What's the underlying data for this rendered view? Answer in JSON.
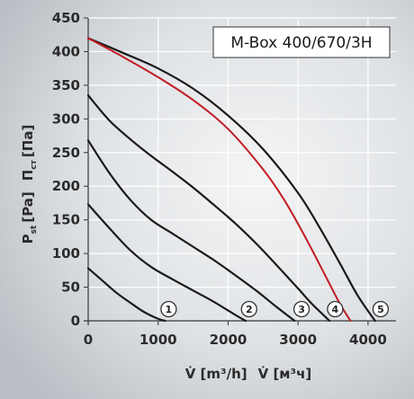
{
  "chart_data": {
    "type": "line",
    "title": "M-Box 400/670/3H",
    "xlabel": "V̇ [m³/h]  V̇ [м³ч]",
    "ylabel": "P st [Pa]  П ст [Па]",
    "ylabel_parts": {
      "en_main": "P",
      "en_sub": "st",
      "en_unit": "[Pa]",
      "ru_main": "П",
      "ru_sub": "ст",
      "ru_unit": "[Па]"
    },
    "xlabel_parts": {
      "en": "V̇ [m³/h]",
      "ru": "V̇ [м³ч]"
    },
    "xlim": [
      0,
      4400
    ],
    "ylim": [
      0,
      450
    ],
    "xticks": [
      "0",
      "1000",
      "2000",
      "3000",
      "4000"
    ],
    "yticks": [
      "0",
      "50",
      "100",
      "150",
      "200",
      "250",
      "300",
      "350",
      "400",
      "450"
    ],
    "grid": true,
    "colors": {
      "curve": "#1a1a1a",
      "highlight": "#c21c22",
      "grid": "#ffffff",
      "background": "#c9cdd2"
    },
    "series": [
      {
        "label": "1",
        "highlight": false,
        "x": [
          0,
          200,
          400,
          600,
          800,
          1000,
          1100
        ],
        "y": [
          78,
          60,
          42,
          27,
          13,
          3,
          0
        ]
      },
      {
        "label": "2",
        "highlight": false,
        "x": [
          0,
          300,
          600,
          900,
          1200,
          1500,
          1800,
          2100,
          2250
        ],
        "y": [
          173,
          138,
          105,
          80,
          62,
          45,
          28,
          9,
          0
        ]
      },
      {
        "label": "3",
        "highlight": false,
        "x": [
          0,
          300,
          600,
          900,
          1200,
          1500,
          1800,
          2100,
          2400,
          2700,
          2950
        ],
        "y": [
          268,
          220,
          180,
          150,
          130,
          110,
          90,
          68,
          45,
          20,
          0
        ]
      },
      {
        "label": "4",
        "highlight": false,
        "x": [
          0,
          300,
          600,
          900,
          1200,
          1500,
          1800,
          2100,
          2400,
          2700,
          3000,
          3200,
          3450
        ],
        "y": [
          335,
          298,
          270,
          245,
          222,
          198,
          172,
          145,
          115,
          82,
          48,
          25,
          0
        ]
      },
      {
        "label": "5",
        "highlight": false,
        "x": [
          0,
          500,
          1000,
          1500,
          2000,
          2500,
          3000,
          3300,
          3600,
          3850,
          4100
        ],
        "y": [
          420,
          398,
          375,
          345,
          305,
          255,
          190,
          140,
          85,
          38,
          0
        ]
      },
      {
        "label": "",
        "highlight": true,
        "x": [
          0,
          500,
          1000,
          1500,
          2000,
          2500,
          2800,
          3100,
          3400,
          3600,
          3750
        ],
        "y": [
          420,
          392,
          362,
          328,
          285,
          225,
          180,
          125,
          65,
          25,
          0
        ]
      }
    ],
    "curve_markers": [
      {
        "label": "1",
        "x": 1150
      },
      {
        "label": "2",
        "x": 2300
      },
      {
        "label": "3",
        "x": 3050
      },
      {
        "label": "4",
        "x": 3530
      },
      {
        "label": "5",
        "x": 4180
      }
    ]
  }
}
